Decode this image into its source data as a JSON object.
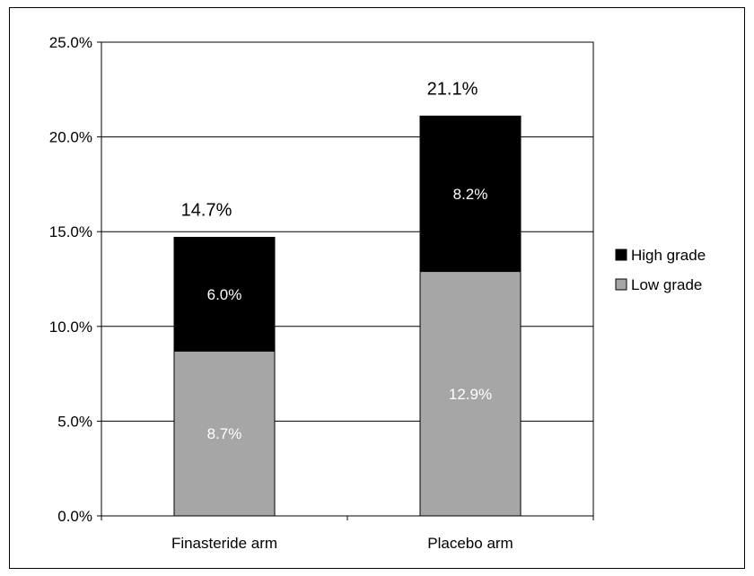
{
  "chart_data": {
    "type": "bar",
    "stacked": true,
    "categories": [
      "Finasteride arm",
      "Placebo arm"
    ],
    "series": [
      {
        "name": "Low grade",
        "values": [
          8.7,
          12.9
        ],
        "labels": [
          "8.7%",
          "12.9%"
        ],
        "color": "#a6a6a6"
      },
      {
        "name": "High grade",
        "values": [
          6.0,
          8.2
        ],
        "labels": [
          "6.0%",
          "8.2%"
        ],
        "color": "#000000"
      }
    ],
    "totals": [
      14.7,
      21.1
    ],
    "total_labels": [
      "14.7%",
      "21.1%"
    ],
    "ylim": [
      0,
      25
    ],
    "yticks": [
      0,
      5,
      10,
      15,
      20,
      25
    ],
    "ytick_labels": [
      "0.0%",
      "5.0%",
      "10.0%",
      "15.0%",
      "20.0%",
      "25.0%"
    ],
    "grid": true,
    "legend_position": "right",
    "legend_order": [
      "High grade",
      "Low grade"
    ],
    "title": "",
    "xlabel": "",
    "ylabel": ""
  }
}
